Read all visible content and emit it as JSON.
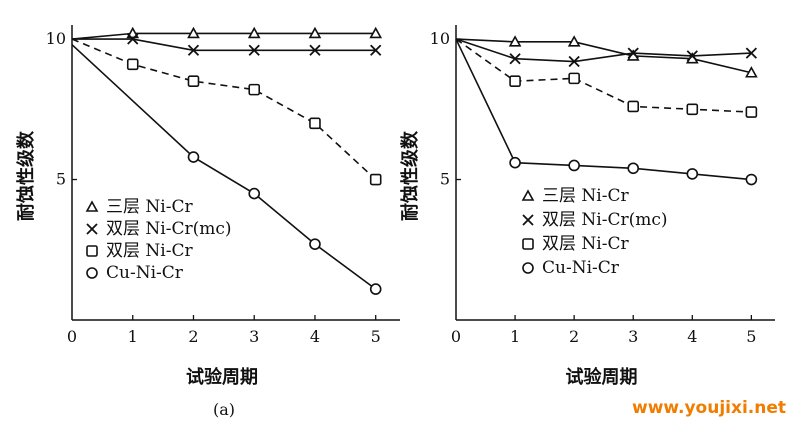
{
  "watermark": "www.youjixi.net",
  "chart_data": [
    {
      "type": "line",
      "caption": "(a)",
      "xlabel": "试验周期",
      "ylabel": "耐蚀性级数",
      "xlim": [
        0,
        5.4
      ],
      "ylim": [
        0,
        10.5
      ],
      "x_ticks": [
        0,
        1,
        2,
        3,
        4,
        5
      ],
      "y_ticks": [
        5,
        10
      ],
      "grid": false,
      "legend_position": "lower-left",
      "series": [
        {
          "name": "三层 Ni-Cr",
          "marker": "triangle",
          "dash": "solid",
          "x": [
            0,
            1,
            2,
            3,
            4,
            5
          ],
          "y": [
            10,
            10.2,
            10.2,
            10.2,
            10.2,
            10.2
          ]
        },
        {
          "name": "双层 Ni-Cr(mc)",
          "marker": "x",
          "dash": "solid",
          "x": [
            0,
            1,
            2,
            3,
            4,
            5
          ],
          "y": [
            10,
            10,
            9.6,
            9.6,
            9.6,
            9.6
          ]
        },
        {
          "name": "双层 Ni-Cr",
          "marker": "square",
          "dash": "dashed",
          "x": [
            0,
            1,
            2,
            3,
            4,
            5
          ],
          "y": [
            10,
            9.1,
            8.5,
            8.2,
            7.0,
            5.0
          ]
        },
        {
          "name": "Cu-Ni-Cr",
          "marker": "circle",
          "dash": "solid",
          "x": [
            0,
            2,
            3,
            4,
            5
          ],
          "y": [
            9.8,
            5.8,
            4.5,
            2.7,
            1.1
          ]
        }
      ]
    },
    {
      "type": "line",
      "caption": "",
      "xlabel": "试验周期",
      "ylabel": "耐蚀性级数",
      "xlim": [
        0,
        5.4
      ],
      "ylim": [
        0,
        10.5
      ],
      "x_ticks": [
        0,
        1,
        2,
        3,
        4,
        5
      ],
      "y_ticks": [
        5,
        10
      ],
      "grid": false,
      "legend_position": "center-right",
      "series": [
        {
          "name": "三层 Ni-Cr",
          "marker": "triangle",
          "dash": "solid",
          "x": [
            0,
            1,
            2,
            3,
            4,
            5
          ],
          "y": [
            10,
            9.9,
            9.9,
            9.4,
            9.3,
            8.8
          ]
        },
        {
          "name": "双层 Ni-Cr(mc)",
          "marker": "x",
          "dash": "solid",
          "x": [
            0,
            1,
            2,
            3,
            4,
            5
          ],
          "y": [
            10,
            9.3,
            9.2,
            9.5,
            9.4,
            9.5
          ]
        },
        {
          "name": "双层 Ni-Cr",
          "marker": "square",
          "dash": "dashed",
          "x": [
            0,
            1,
            2,
            3,
            4,
            5
          ],
          "y": [
            10,
            8.5,
            8.6,
            7.6,
            7.5,
            7.4
          ]
        },
        {
          "name": "Cu-Ni-Cr",
          "marker": "circle",
          "dash": "solid",
          "x": [
            0,
            1,
            2,
            3,
            4,
            5
          ],
          "y": [
            10,
            5.6,
            5.5,
            5.4,
            5.2,
            5.0
          ]
        }
      ]
    }
  ]
}
